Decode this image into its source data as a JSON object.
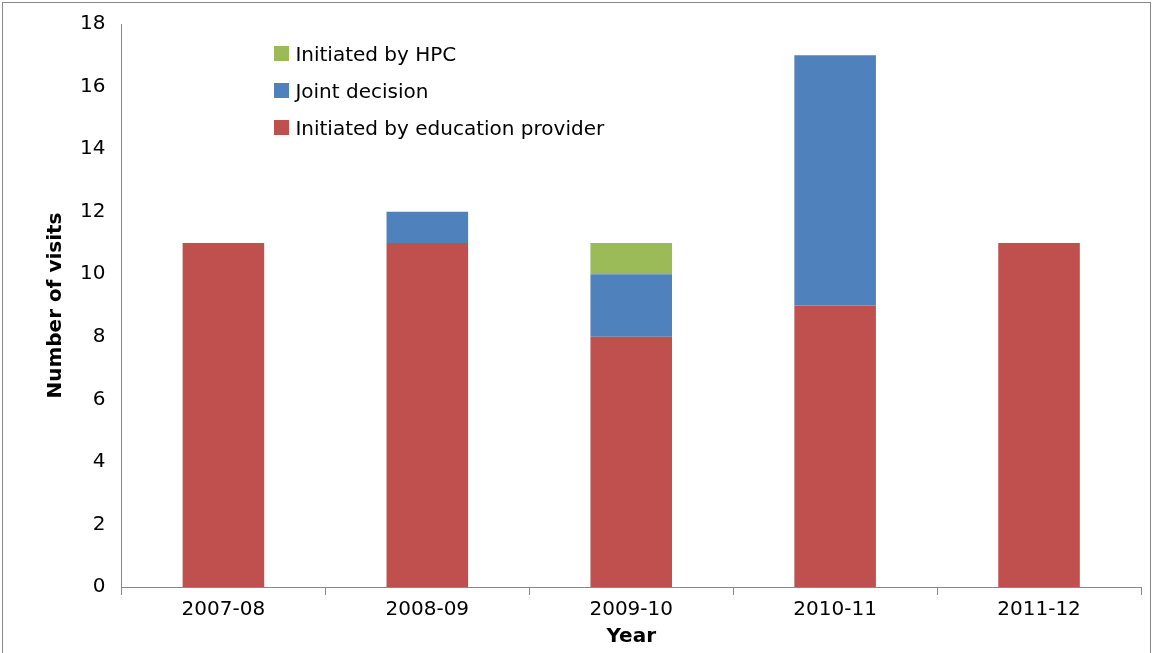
{
  "chart_data": {
    "type": "bar",
    "stacked": true,
    "xlabel": "Year",
    "ylabel": "Number of visits",
    "categories": [
      "2007-08",
      "2008-09",
      "2009-10",
      "2010-11",
      "2011-12"
    ],
    "series": [
      {
        "name": "Initiated by education provider",
        "color": "#c0504d",
        "values": [
          11,
          11,
          8,
          9,
          11
        ]
      },
      {
        "name": "Joint decision",
        "color": "#4f81bd",
        "values": [
          0,
          1,
          2,
          8,
          0
        ]
      },
      {
        "name": "Initiated by HPC",
        "color": "#9bbb59",
        "values": [
          0,
          0,
          1,
          0,
          0
        ]
      }
    ],
    "ylim": [
      0,
      18
    ],
    "yticks": [
      0,
      2,
      4,
      6,
      8,
      10,
      12,
      14,
      16,
      18
    ],
    "grid": false,
    "legend": "top left"
  }
}
